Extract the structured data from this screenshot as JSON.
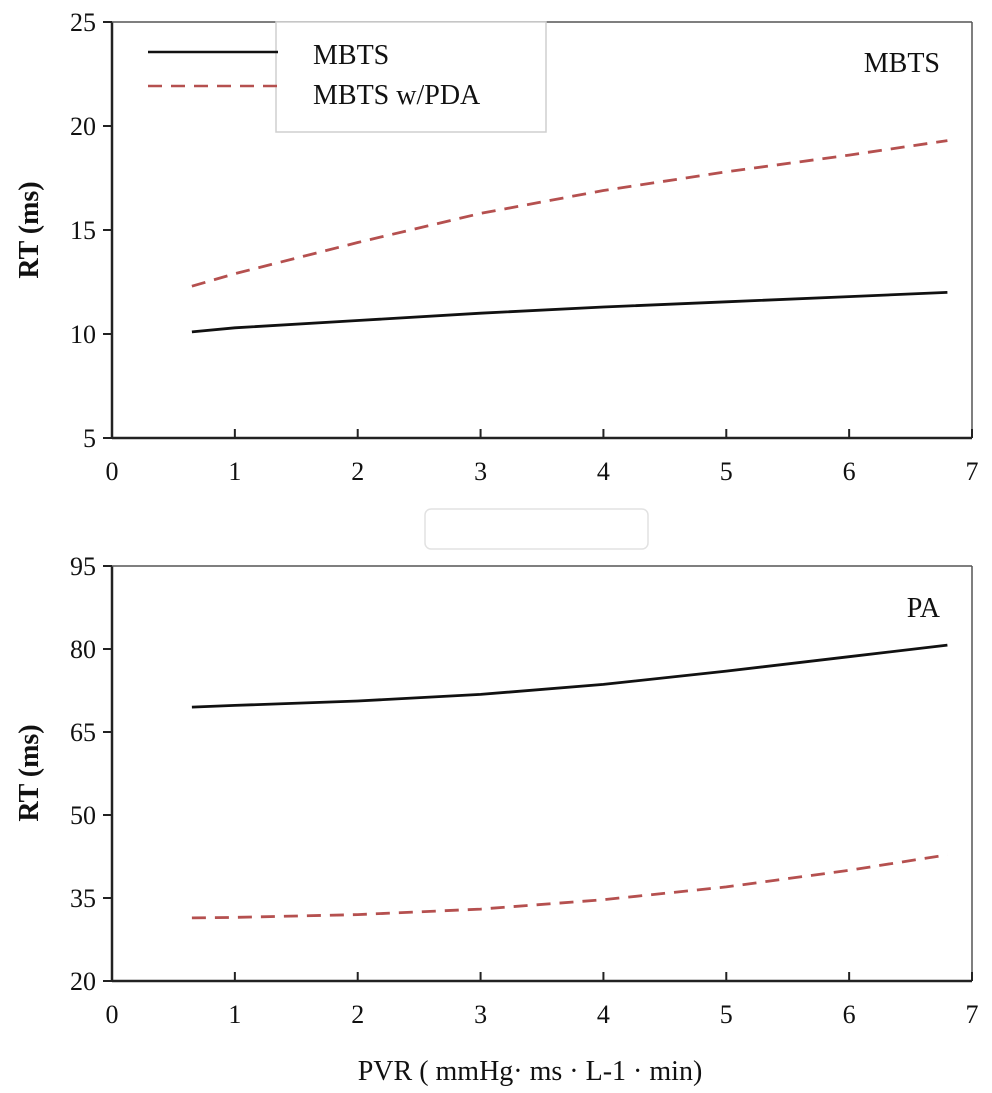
{
  "chart_data": [
    {
      "type": "line",
      "panel_label": "MBTS",
      "xlabel": "",
      "ylabel": "RT (ms)",
      "xlim": [
        0,
        7
      ],
      "ylim": [
        5,
        25
      ],
      "x_ticks": [
        0,
        1,
        2,
        3,
        4,
        5,
        6,
        7
      ],
      "y_ticks": [
        5,
        10,
        15,
        20,
        25
      ],
      "legend": {
        "placement": "top-left",
        "entries": [
          {
            "label": "MBTS",
            "style": "solid",
            "color": "#111111"
          },
          {
            "label": "MBTS w/PDA",
            "style": "dashed",
            "color": "#b5504f"
          }
        ]
      },
      "series": [
        {
          "name": "MBTS",
          "style": "solid",
          "color": "#111111",
          "x": [
            0.65,
            1,
            2,
            3,
            4,
            5,
            6,
            6.8
          ],
          "y": [
            10.1,
            10.3,
            10.65,
            11.0,
            11.3,
            11.55,
            11.8,
            12.0
          ]
        },
        {
          "name": "MBTS w/PDA",
          "style": "dashed",
          "color": "#b5504f",
          "x": [
            0.65,
            1,
            2,
            3,
            4,
            5,
            6,
            6.8
          ],
          "y": [
            12.3,
            12.9,
            14.4,
            15.8,
            16.9,
            17.8,
            18.6,
            19.3
          ]
        }
      ]
    },
    {
      "type": "line",
      "panel_label": "PA",
      "xlabel": "PVR ( mmHg· ms · L-1 · min)",
      "ylabel": "RT (ms)",
      "xlim": [
        0,
        7
      ],
      "ylim": [
        20,
        95
      ],
      "x_ticks": [
        0,
        1,
        2,
        3,
        4,
        5,
        6,
        7
      ],
      "y_ticks": [
        20,
        35,
        50,
        65,
        80,
        95
      ],
      "series": [
        {
          "name": "MBTS",
          "style": "solid",
          "color": "#111111",
          "x": [
            0.65,
            1,
            2,
            3,
            4,
            5,
            6,
            6.8
          ],
          "y": [
            69.5,
            69.8,
            70.6,
            71.8,
            73.6,
            76.0,
            78.6,
            80.7
          ]
        },
        {
          "name": "MBTS w/PDA",
          "style": "dashed",
          "color": "#b5504f",
          "x": [
            0.65,
            1,
            2,
            3,
            4,
            5,
            6,
            6.8
          ],
          "y": [
            31.4,
            31.5,
            32.0,
            33.0,
            34.7,
            37.0,
            40.0,
            42.8
          ]
        }
      ]
    }
  ]
}
